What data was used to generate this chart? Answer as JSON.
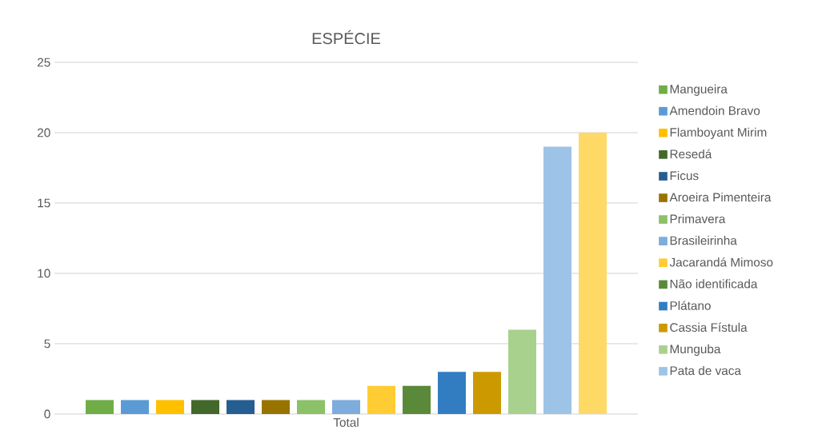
{
  "chart_data": {
    "type": "bar",
    "title": "ESPÉCIE",
    "categories": [
      "Total"
    ],
    "series": [
      {
        "name": "Mangueira",
        "color": "#70ad47",
        "values": [
          1
        ]
      },
      {
        "name": "Amendoin Bravo",
        "color": "#5b9bd5",
        "values": [
          1
        ]
      },
      {
        "name": "Flamboyant Mirim",
        "color": "#ffc000",
        "values": [
          1
        ]
      },
      {
        "name": "Resedá",
        "color": "#43682b",
        "values": [
          1
        ]
      },
      {
        "name": "Ficus",
        "color": "#255e91",
        "values": [
          1
        ]
      },
      {
        "name": "Aroeira Pimenteira",
        "color": "#997300",
        "values": [
          1
        ]
      },
      {
        "name": "Primavera",
        "color": "#8cc168",
        "values": [
          1
        ]
      },
      {
        "name": "Brasileirinha",
        "color": "#7caddd",
        "values": [
          1
        ]
      },
      {
        "name": "Jacarandá Mimoso",
        "color": "#ffcd33",
        "values": [
          2
        ]
      },
      {
        "name": "Não identificada",
        "color": "#5a8a39",
        "values": [
          2
        ]
      },
      {
        "name": "Plátano",
        "color": "#327dc2",
        "values": [
          3
        ]
      },
      {
        "name": "Cassia Fístula",
        "color": "#cc9a00",
        "values": [
          3
        ]
      },
      {
        "name": "Munguba",
        "color": "#a9d18e",
        "values": [
          6
        ]
      },
      {
        "name": "Pata de vaca",
        "color": "#9dc3e6",
        "values": [
          19
        ]
      },
      {
        "color": "#ffd966",
        "values": [
          20
        ]
      }
    ],
    "ylim": [
      0,
      25
    ],
    "yticks": [
      0,
      5,
      10,
      15,
      20,
      25
    ],
    "grid": "y",
    "legend": "right"
  }
}
